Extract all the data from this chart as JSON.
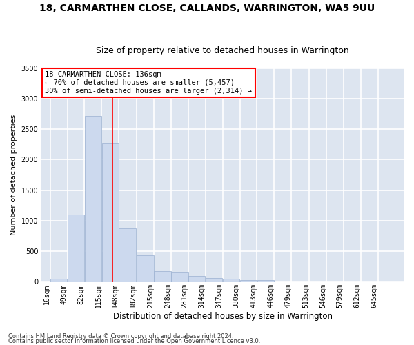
{
  "title": "18, CARMARTHEN CLOSE, CALLANDS, WARRINGTON, WA5 9UU",
  "subtitle": "Size of property relative to detached houses in Warrington",
  "xlabel": "Distribution of detached houses by size in Warrington",
  "ylabel": "Number of detached properties",
  "bar_color": "#ccd9ee",
  "bar_edge_color": "#9ab0d0",
  "background_color": "#dde5f0",
  "grid_color": "#ffffff",
  "red_line_x": 136,
  "annotation_line1": "18 CARMARTHEN CLOSE: 136sqm",
  "annotation_line2": "← 70% of detached houses are smaller (5,457)",
  "annotation_line3": "30% of semi-detached houses are larger (2,314) →",
  "bins": [
    16,
    49,
    82,
    115,
    148,
    182,
    215,
    248,
    281,
    314,
    347,
    380,
    413,
    446,
    479,
    513,
    546,
    579,
    612,
    645,
    678
  ],
  "counts": [
    50,
    1100,
    2720,
    2280,
    870,
    430,
    170,
    160,
    90,
    60,
    55,
    30,
    25,
    10,
    8,
    5,
    5,
    3,
    2,
    2
  ],
  "ylim": [
    0,
    3500
  ],
  "yticks": [
    0,
    500,
    1000,
    1500,
    2000,
    2500,
    3000,
    3500
  ],
  "footer1": "Contains HM Land Registry data © Crown copyright and database right 2024.",
  "footer2": "Contains public sector information licensed under the Open Government Licence v3.0.",
  "title_fontsize": 10,
  "subtitle_fontsize": 9,
  "tick_fontsize": 7,
  "ylabel_fontsize": 8,
  "xlabel_fontsize": 8.5,
  "footer_fontsize": 6,
  "annot_fontsize": 7.5
}
